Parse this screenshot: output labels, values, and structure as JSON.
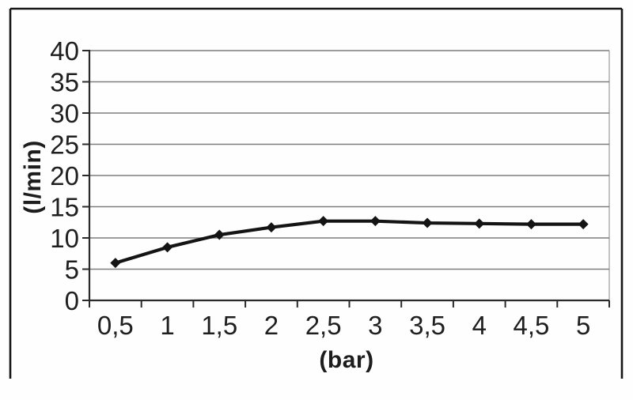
{
  "chart_data": {
    "type": "line",
    "title": "",
    "xlabel": "(bar)",
    "ylabel": "(l/min)",
    "categories": [
      "0,5",
      "1",
      "1,5",
      "2",
      "2,5",
      "3",
      "3,5",
      "4",
      "4,5",
      "5"
    ],
    "x_numeric": [
      0.5,
      1,
      1.5,
      2,
      2.5,
      3,
      3.5,
      4,
      4.5,
      5
    ],
    "values": [
      6,
      8.5,
      10.5,
      11.7,
      12.7,
      12.7,
      12.4,
      12.3,
      12.2,
      12.2
    ],
    "ylim": [
      0,
      40
    ],
    "yticks": [
      0,
      5,
      10,
      15,
      20,
      25,
      30,
      35,
      40
    ],
    "ytick_labels": [
      "0",
      "5",
      "10",
      "15",
      "20",
      "25",
      "30",
      "35",
      "40"
    ],
    "grid": true,
    "legend_position": "none",
    "marker": "diamond",
    "colors": {
      "line": "#141414",
      "marker": "#141414",
      "grid": "#7d7d7d",
      "plot_border": "#a8a8a8",
      "axis": "#2a2a2a",
      "text": "#1f1f1f",
      "frame": "#161616",
      "background": "#fefefe"
    }
  }
}
